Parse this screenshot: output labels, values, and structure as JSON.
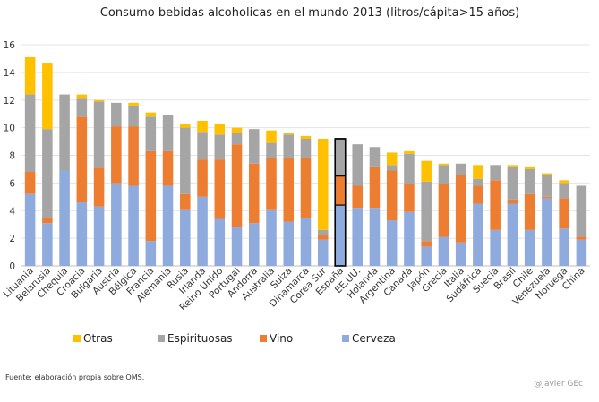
{
  "chart_data": {
    "type": "bar",
    "stacked": true,
    "title": "Consumo bebidas alcoholicas en el mundo 2013 (litros/cápita>15 años)",
    "ylim": [
      0,
      16
    ],
    "yticks": [
      0,
      2,
      4,
      6,
      8,
      10,
      12,
      14,
      16
    ],
    "grid": true,
    "legend_position": "bottom",
    "highlighted_category": "España",
    "categories": [
      "Lituania",
      "Belarusia",
      "Chequia",
      "Croacia",
      "Bulgaria",
      "Austria",
      "Bélgica",
      "Francia",
      "Alemania",
      "Rusia",
      "Irlanda",
      "Reino Unido",
      "Portugal",
      "Andorra",
      "Australia",
      "Suiza",
      "Dinamarca",
      "Corea Sur",
      "España",
      "EE.UU.",
      "Holanda",
      "Argentina",
      "Canadá",
      "Japón",
      "Grecia",
      "Italia",
      "Sudáfrica",
      "Suecia",
      "Brasil",
      "Chile",
      "Venezuela",
      "Noruega",
      "China"
    ],
    "series": [
      {
        "name": "Cerveza",
        "color": "#8faadc",
        "values": [
          5.2,
          3.1,
          6.9,
          4.6,
          4.3,
          6.0,
          5.8,
          1.8,
          5.8,
          4.1,
          5.0,
          3.4,
          2.8,
          3.1,
          4.1,
          3.2,
          3.5,
          1.9,
          4.4,
          4.2,
          4.2,
          3.3,
          3.9,
          1.4,
          2.1,
          1.7,
          4.5,
          2.6,
          4.5,
          2.6,
          4.9,
          2.7,
          1.9
        ]
      },
      {
        "name": "Vino",
        "color": "#ed7d31",
        "values": [
          1.6,
          0.4,
          0.0,
          6.2,
          2.8,
          4.1,
          4.3,
          6.5,
          2.5,
          1.1,
          2.7,
          4.3,
          6.0,
          4.3,
          3.7,
          4.6,
          4.3,
          0.3,
          2.1,
          1.6,
          3.0,
          3.6,
          2.0,
          0.4,
          3.8,
          4.9,
          1.3,
          3.6,
          0.3,
          2.6,
          0.1,
          2.2,
          0.2
        ]
      },
      {
        "name": "Espirituosas",
        "color": "#a5a5a5",
        "values": [
          5.6,
          6.4,
          5.5,
          1.3,
          4.8,
          1.7,
          1.5,
          2.5,
          2.6,
          4.8,
          2.0,
          1.8,
          0.8,
          2.5,
          1.1,
          1.7,
          1.4,
          0.4,
          2.7,
          3.0,
          1.4,
          0.4,
          2.2,
          4.3,
          1.4,
          0.8,
          0.5,
          1.1,
          2.4,
          1.8,
          1.6,
          1.1,
          3.7
        ]
      },
      {
        "name": "Otras",
        "color": "#ffc000",
        "values": [
          2.7,
          4.8,
          0.0,
          0.3,
          0.1,
          0.0,
          0.2,
          0.3,
          0.0,
          0.3,
          0.8,
          0.8,
          0.4,
          0.0,
          0.9,
          0.1,
          0.2,
          6.6,
          0.0,
          0.0,
          0.0,
          0.9,
          0.2,
          1.5,
          0.1,
          0.0,
          1.0,
          0.0,
          0.1,
          0.2,
          0.1,
          0.2,
          0.0
        ]
      }
    ],
    "legend": [
      "Otras",
      "Espirituosas",
      "Vino",
      "Cerveza"
    ]
  },
  "source_note": "Fuente: elaboración propia sobre OMS.",
  "credit": "@Javier GEc"
}
